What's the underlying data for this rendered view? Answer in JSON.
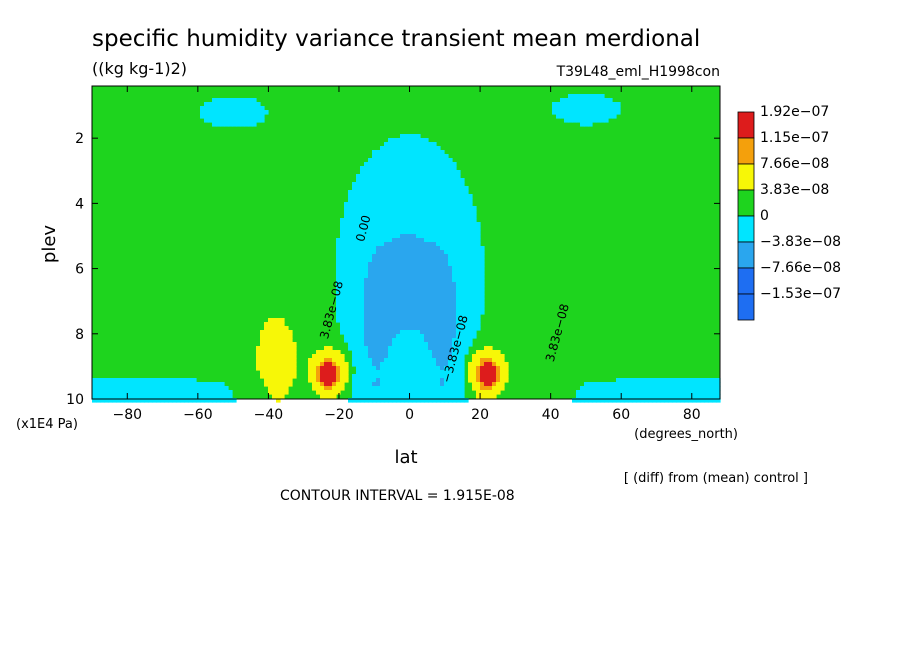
{
  "chart_data": {
    "type": "contour",
    "title": "specific humidity variance transient mean merdional",
    "units": "((kg kg-1)2)",
    "run": "T39L48_eml_H1998con",
    "xlabel": "lat",
    "xunit": "(degrees_north)",
    "ylabel": "plev",
    "yunit": "(x1E4 Pa)",
    "xlim": [
      -90,
      88
    ],
    "ylim": [
      10,
      0.4
    ],
    "x_ticks": [
      -80,
      -60,
      -40,
      -20,
      0,
      20,
      40,
      60,
      80
    ],
    "x_tick_labels": [
      "−80",
      "−60",
      "−40",
      "−20",
      "0",
      "20",
      "40",
      "60",
      "80"
    ],
    "y_ticks": [
      2,
      4,
      6,
      8,
      10
    ],
    "y_tick_labels": [
      "2",
      "4",
      "6",
      "8",
      "10"
    ],
    "contour_interval_text": "CONTOUR INTERVAL = 1.915E-08",
    "diff_text": "[ (diff) from (mean) control ]",
    "legend": {
      "position": "right",
      "entries": [
        {
          "label": "1.92e−07",
          "color": "#dd1c1c"
        },
        {
          "label": "1.15e−07",
          "color": "#f4a00c"
        },
        {
          "label": "7.66e−08",
          "color": "#f7f707"
        },
        {
          "label": "3.83e−08",
          "color": "#1ed41e"
        },
        {
          "label": "0",
          "color": "#00e5ff"
        },
        {
          "label": "−3.83e−08",
          "color": "#2aa6ee"
        },
        {
          "label": "−7.66e−08",
          "color": "#1e6ef2"
        },
        {
          "label": "−1.53e−07",
          "color": "#ffffff"
        }
      ]
    },
    "contour_labels": [
      {
        "text": "0.00",
        "lat": -12,
        "plev": 4.8
      },
      {
        "text": "3.83e−08",
        "lat": -21,
        "plev": 7.3
      },
      {
        "text": "−3.83e−08",
        "lat": 14,
        "plev": 8.5
      },
      {
        "text": "3.83e−08",
        "lat": 43,
        "plev": 8.0
      }
    ]
  }
}
